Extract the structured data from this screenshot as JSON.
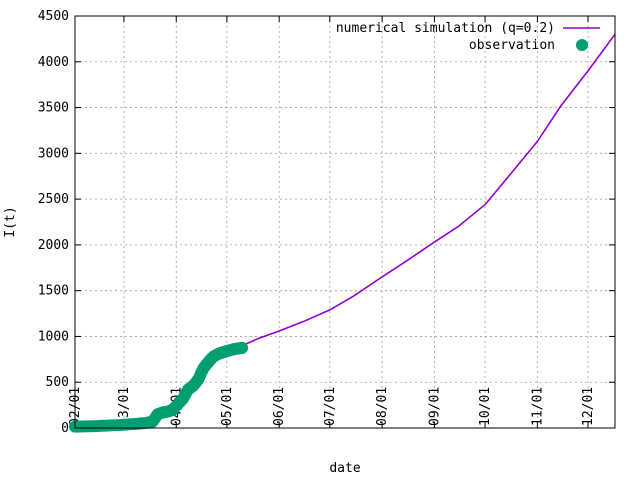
{
  "chart_data": {
    "type": "line",
    "title": "",
    "xlabel": "date",
    "ylabel": "I(t)",
    "xlim": [
      "2020-02-01",
      "2020-12-17"
    ],
    "ylim": [
      0,
      4500
    ],
    "grid": true,
    "legend_position": "top-right",
    "y_ticks": [
      0,
      500,
      1000,
      1500,
      2000,
      2500,
      3000,
      3500,
      4000,
      4500
    ],
    "x_ticks": [
      {
        "date": "2020-02-01",
        "label": "02/01"
      },
      {
        "date": "2020-03-01",
        "label": "03/01"
      },
      {
        "date": "2020-04-01",
        "label": "04/01"
      },
      {
        "date": "2020-05-01",
        "label": "05/01"
      },
      {
        "date": "2020-06-01",
        "label": "06/01"
      },
      {
        "date": "2020-07-01",
        "label": "07/01"
      },
      {
        "date": "2020-08-01",
        "label": "08/01"
      },
      {
        "date": "2020-09-01",
        "label": "09/01"
      },
      {
        "date": "2020-10-01",
        "label": "10/01"
      },
      {
        "date": "2020-11-01",
        "label": "11/01"
      },
      {
        "date": "2020-12-01",
        "label": "12/01"
      }
    ],
    "series": [
      {
        "name": "numerical simulation (q=0.2)",
        "kind": "line",
        "color": "#9400d3",
        "x": [
          "2020-02-01",
          "2020-02-15",
          "2020-03-01",
          "2020-03-15",
          "2020-03-25",
          "2020-04-01",
          "2020-04-05",
          "2020-04-10",
          "2020-04-15",
          "2020-04-20",
          "2020-04-25",
          "2020-05-01",
          "2020-05-10",
          "2020-05-20",
          "2020-06-01",
          "2020-06-15",
          "2020-07-01",
          "2020-07-15",
          "2020-08-01",
          "2020-08-15",
          "2020-09-01",
          "2020-09-15",
          "2020-10-01",
          "2020-10-15",
          "2020-11-01",
          "2020-11-15",
          "2020-12-01",
          "2020-12-17"
        ],
        "y": [
          10,
          20,
          35,
          60,
          150,
          220,
          300,
          420,
          520,
          680,
          780,
          840,
          900,
          980,
          1060,
          1160,
          1290,
          1440,
          1650,
          1820,
          2030,
          2200,
          2440,
          2750,
          3130,
          3520,
          3900,
          4300
        ]
      },
      {
        "name": "observation",
        "kind": "points",
        "color": "#009e73",
        "x": [
          "2020-02-01",
          "2020-02-08",
          "2020-02-15",
          "2020-02-22",
          "2020-03-01",
          "2020-03-08",
          "2020-03-14",
          "2020-03-18",
          "2020-03-21",
          "2020-03-24",
          "2020-03-27",
          "2020-03-30",
          "2020-04-02",
          "2020-04-05",
          "2020-04-08",
          "2020-04-11",
          "2020-04-14",
          "2020-04-17",
          "2020-04-20",
          "2020-04-23",
          "2020-04-26",
          "2020-04-29",
          "2020-05-02",
          "2020-05-05",
          "2020-05-08",
          "2020-05-10"
        ],
        "y": [
          15,
          18,
          22,
          28,
          35,
          45,
          55,
          70,
          150,
          170,
          180,
          200,
          260,
          320,
          420,
          460,
          530,
          650,
          720,
          780,
          810,
          830,
          845,
          860,
          870,
          875
        ]
      }
    ]
  }
}
